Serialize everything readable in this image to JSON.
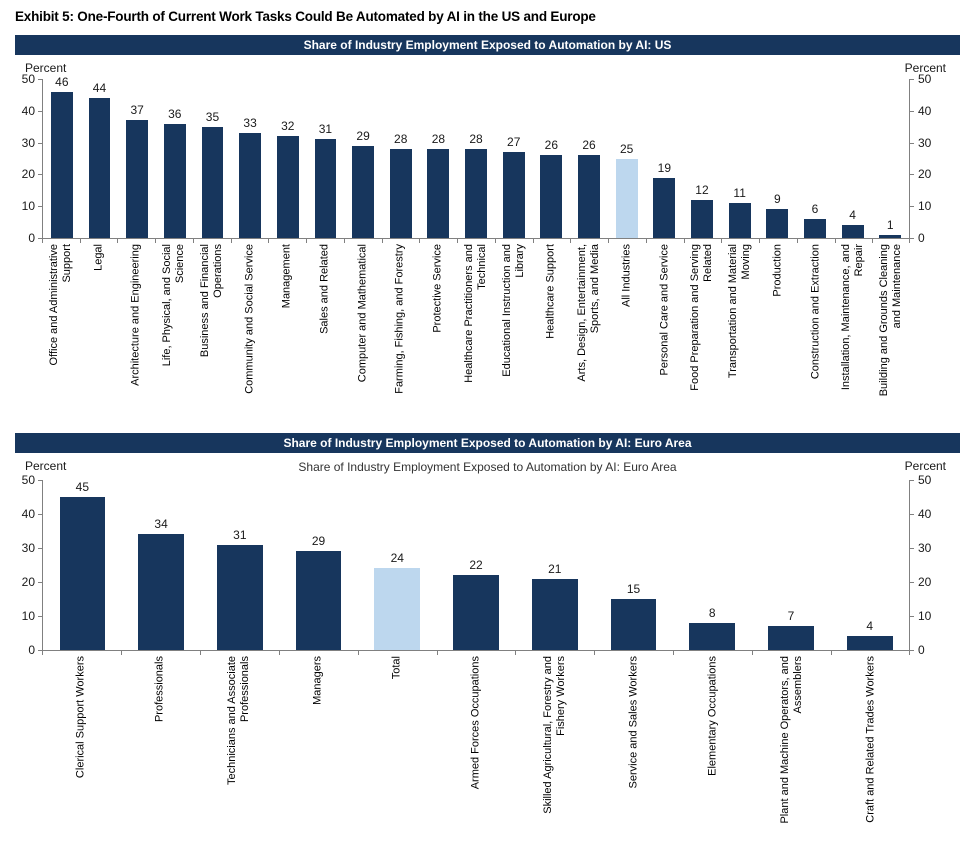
{
  "page": {
    "exhibit_title": "Exhibit 5: One-Fourth of Current Work Tasks Could Be Automated by AI in the US and Europe"
  },
  "colors": {
    "bar": "#17365D",
    "highlight_bar": "#BDD7EE",
    "header_bg": "#17365D",
    "header_text": "#FFFFFF",
    "axis": "#808080"
  },
  "chart_data": [
    {
      "type": "bar",
      "title": "Share of Industry Employment Exposed to Automation by AI: US",
      "ylabel_left": "Percent",
      "ylabel_right": "Percent",
      "ylim": [
        0,
        50
      ],
      "yticks": [
        0,
        10,
        20,
        30,
        40,
        50
      ],
      "grid": false,
      "legend": "none",
      "highlight_category": "All Industries",
      "categories": [
        "Office and Administrative Support",
        "Legal",
        "Architecture and Engineering",
        "Life, Physical, and Social Science",
        "Business and Financial Operations",
        "Community and Social Service",
        "Management",
        "Sales and Related",
        "Computer and Mathematical",
        "Farming, Fishing, and Forestry",
        "Protective Service",
        "Healthcare Practitioners and Technical",
        "Educational Instruction and Library",
        "Healthcare Support",
        "Arts, Design, Entertainment, Sports, and Media",
        "All Industries",
        "Personal Care and Service",
        "Food Preparation and Serving Related",
        "Transportation and Material Moving",
        "Production",
        "Construction and Extraction",
        "Installation, Maintenance, and Repair",
        "Building and Grounds Cleaning and Maintenance"
      ],
      "values": [
        46,
        44,
        37,
        36,
        35,
        33,
        32,
        31,
        29,
        28,
        28,
        28,
        27,
        26,
        26,
        25,
        19,
        12,
        11,
        9,
        6,
        4,
        1
      ]
    },
    {
      "type": "bar",
      "title": "Share of Industry Employment Exposed to Automation by AI: Euro Area",
      "inner_title": "Share of Industry Employment Exposed to Automation by AI: Euro Area",
      "ylabel_left": "Percent",
      "ylabel_right": "Percent",
      "ylim": [
        0,
        50
      ],
      "yticks": [
        0,
        10,
        20,
        30,
        40,
        50
      ],
      "grid": false,
      "legend": "none",
      "highlight_category": "Total",
      "categories": [
        "Clerical Support Workers",
        "Professionals",
        "Technicians and Associate Professionals",
        "Managers",
        "Total",
        "Armed Forces Occupations",
        "Skilled Agricultural, Forestry and Fishery Workers",
        "Service and Sales Workers",
        "Elementary Occupations",
        "Plant and Machine Operators, and Assemblers",
        "Craft and Related Trades Workers"
      ],
      "values": [
        45,
        34,
        31,
        29,
        24,
        22,
        21,
        15,
        8,
        7,
        4
      ]
    }
  ]
}
